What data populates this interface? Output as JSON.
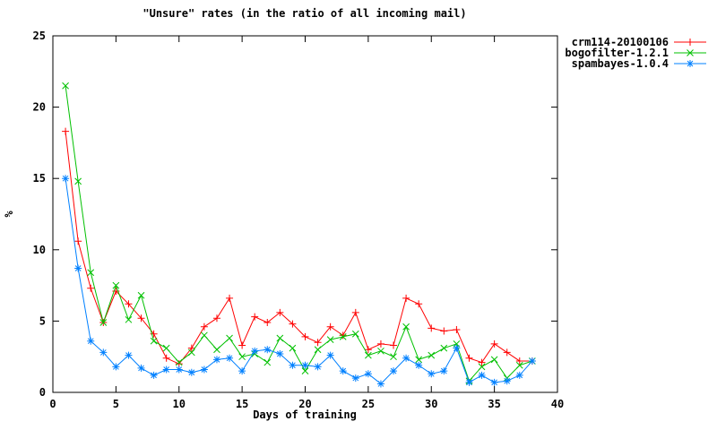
{
  "chart_data": {
    "type": "line",
    "title": "\"Unsure\" rates (in the ratio of all incoming mail)",
    "xlabel": "Days of training",
    "ylabel": "%",
    "xlim": [
      0,
      40
    ],
    "ylim": [
      0,
      25
    ],
    "xticks": [
      0,
      5,
      10,
      15,
      20,
      25,
      30,
      35,
      40
    ],
    "yticks": [
      0,
      5,
      10,
      15,
      20,
      25
    ],
    "grid": false,
    "legend_position": "outside-top-right",
    "x": [
      1,
      2,
      3,
      4,
      5,
      6,
      7,
      8,
      9,
      10,
      11,
      12,
      13,
      14,
      15,
      16,
      17,
      18,
      19,
      20,
      21,
      22,
      23,
      24,
      25,
      26,
      27,
      28,
      29,
      30,
      31,
      32,
      33,
      34,
      35,
      36,
      37,
      38
    ],
    "series": [
      {
        "name": "crm114-20100106",
        "color": "#ff0000",
        "marker": "plus",
        "values": [
          18.3,
          10.6,
          7.3,
          4.9,
          7.1,
          6.2,
          5.2,
          4.1,
          2.4,
          2.0,
          3.1,
          4.6,
          5.2,
          6.6,
          3.3,
          5.3,
          4.9,
          5.6,
          4.8,
          3.9,
          3.5,
          4.6,
          4.0,
          5.6,
          3.0,
          3.4,
          3.3,
          6.6,
          6.2,
          4.5,
          4.3,
          4.4,
          2.4,
          2.1,
          3.4,
          2.8,
          2.2,
          2.2
        ]
      },
      {
        "name": "bogofilter-1.2.1",
        "color": "#00c000",
        "marker": "x",
        "values": [
          21.5,
          14.8,
          8.4,
          4.9,
          7.5,
          5.1,
          6.8,
          3.6,
          3.1,
          2.1,
          2.8,
          4.0,
          3.0,
          3.8,
          2.5,
          2.7,
          2.1,
          3.8,
          3.1,
          1.5,
          3.0,
          3.7,
          3.9,
          4.1,
          2.6,
          2.9,
          2.5,
          4.6,
          2.3,
          2.6,
          3.1,
          3.4,
          0.8,
          1.8,
          2.3,
          1.0,
          1.9,
          2.2
        ]
      },
      {
        "name": "spambayes-1.0.4",
        "color": "#0080ff",
        "marker": "star",
        "values": [
          15.0,
          8.7,
          3.6,
          2.8,
          1.8,
          2.6,
          1.7,
          1.2,
          1.6,
          1.6,
          1.4,
          1.6,
          2.3,
          2.4,
          1.5,
          2.9,
          3.0,
          2.7,
          1.9,
          1.9,
          1.8,
          2.6,
          1.5,
          1.0,
          1.3,
          0.6,
          1.5,
          2.4,
          1.9,
          1.3,
          1.5,
          3.1,
          0.7,
          1.2,
          0.7,
          0.8,
          1.2,
          2.2
        ]
      }
    ]
  }
}
